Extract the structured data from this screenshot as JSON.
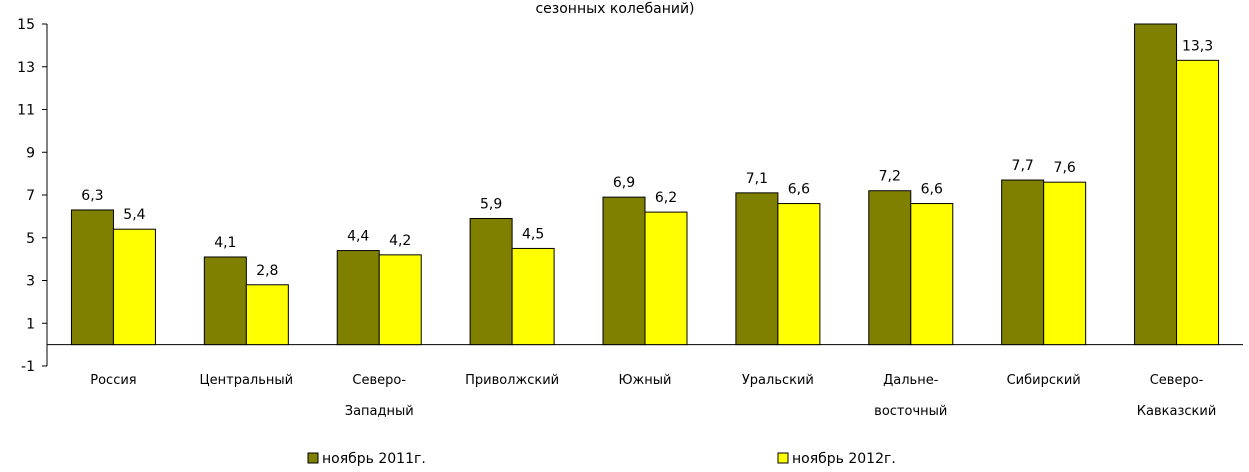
{
  "chart_data": {
    "type": "bar",
    "title": "сезонных колебаний)",
    "categories": [
      [
        "Россия"
      ],
      [
        "Центральный"
      ],
      [
        "Северо-",
        "Западный"
      ],
      [
        "Приволжский"
      ],
      [
        "Южный"
      ],
      [
        "Уральский"
      ],
      [
        "Дальне-",
        "восточный"
      ],
      [
        "Сибирский"
      ],
      [
        "Северо-",
        "Кавказский"
      ]
    ],
    "series": [
      {
        "name": "ноябрь 2011г.",
        "color": "#808000",
        "values": [
          6.3,
          4.1,
          4.4,
          5.9,
          6.9,
          7.1,
          7.2,
          7.7,
          15.0
        ],
        "labels": [
          "6,3",
          "4,1",
          "4,4",
          "5,9",
          "6,9",
          "7,1",
          "7,2",
          "7,7",
          ""
        ]
      },
      {
        "name": "ноябрь 2012г.",
        "color": "#ffff00",
        "values": [
          5.4,
          2.8,
          4.2,
          4.5,
          6.2,
          6.6,
          6.6,
          7.6,
          13.3
        ],
        "labels": [
          "5,4",
          "2,8",
          "4,2",
          "4,5",
          "6,2",
          "6,6",
          "6,6",
          "7,6",
          "13,3"
        ]
      }
    ],
    "yticks": [
      15,
      13,
      11,
      9,
      7,
      5,
      3,
      1,
      -1
    ],
    "ylim": [
      -1,
      15
    ],
    "xlabel": "",
    "ylabel": "",
    "grid": false,
    "legend": "bottom"
  }
}
